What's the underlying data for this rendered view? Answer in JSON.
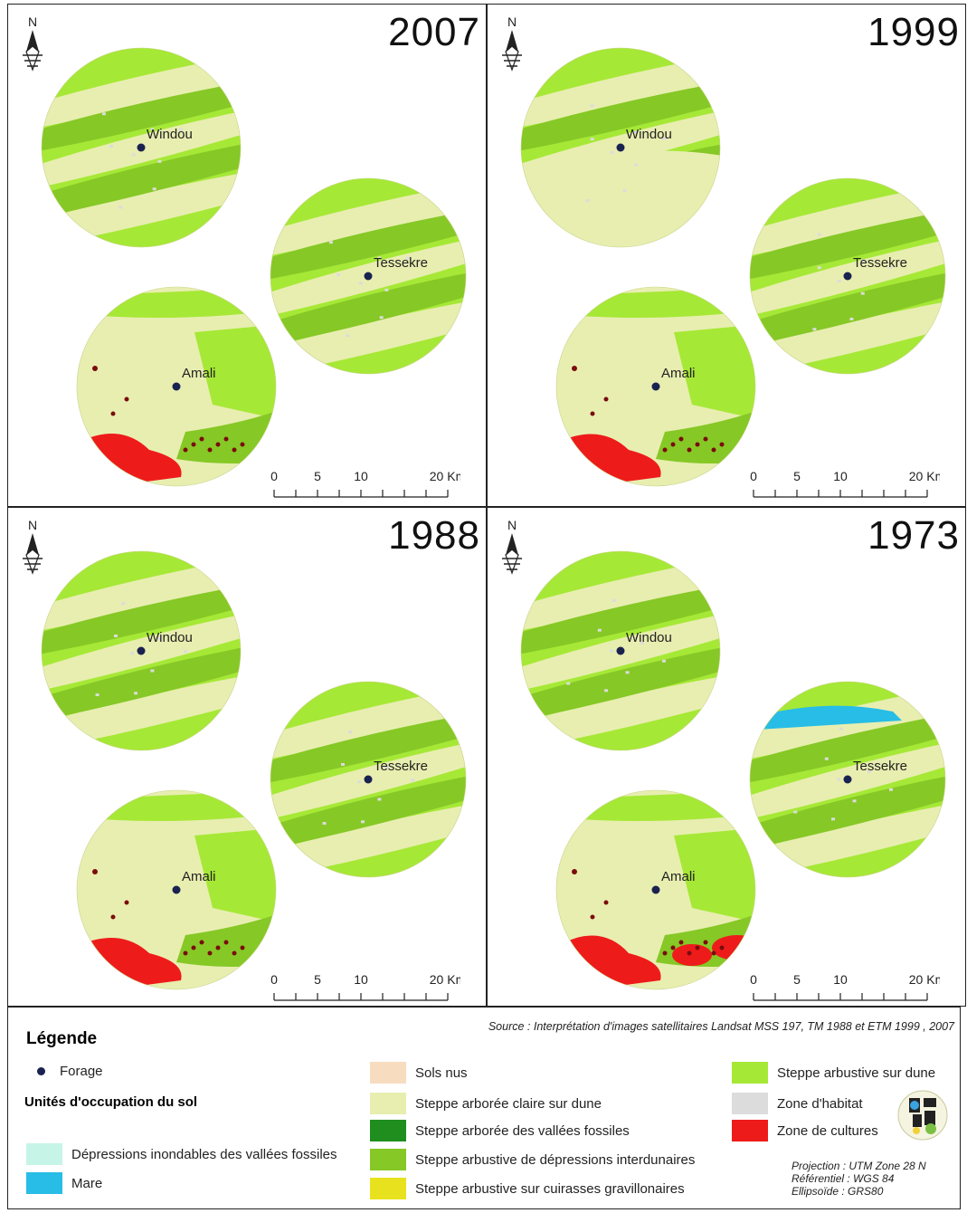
{
  "panels": [
    {
      "year": "2007",
      "villages": {
        "windou": "Windou",
        "tessekre": "Tessekre",
        "amali": "Amali"
      }
    },
    {
      "year": "1999",
      "villages": {
        "windou": "Windou",
        "tessekre": "Tessekre",
        "amali": "Amali"
      }
    },
    {
      "year": "1988",
      "villages": {
        "windou": "Windou",
        "tessekre": "Tessekre",
        "amali": "Amali"
      }
    },
    {
      "year": "1973",
      "villages": {
        "windou": "Windou",
        "tessekre": "Tessekre",
        "amali": "Amali"
      }
    }
  ],
  "north_label": "N",
  "scale": {
    "labels": [
      "0",
      "5",
      "10",
      "20 Km"
    ]
  },
  "legend": {
    "title": "Légende",
    "source": "Source : Interprétation d'images satellitaires Landsat MSS 197, TM 1988 et ETM 1999 , 2007",
    "forage": "Forage",
    "units_title": "Unités d'occupation du sol",
    "items": [
      {
        "label": "Dépressions inondables des vallées fossiles",
        "color": "#c6f5e8"
      },
      {
        "label": "Mare",
        "color": "#27bde6"
      },
      {
        "label": "Sols nus",
        "color": "#f8dcc0"
      },
      {
        "label": "Steppe arborée claire sur dune",
        "color": "#e8eeb0"
      },
      {
        "label": "Steppe arborée des vallées fossiles",
        "color": "#1f8e1f"
      },
      {
        "label": "Steppe arbustive de dépressions interdunaires",
        "color": "#86c826"
      },
      {
        "label": "Steppe arbustive sur cuirasses gravillonaires",
        "color": "#e8e21e"
      },
      {
        "label": "Steppe arbustive sur dune",
        "color": "#a6e836"
      },
      {
        "label": "Zone d'habitat",
        "color": "#dcdcdc"
      },
      {
        "label": "Zone de cultures",
        "color": "#ee1b1b"
      }
    ],
    "projection": [
      "Projection : UTM Zone 28 N",
      "Référentiel : WGS 84",
      "Ellipsoïde : GRS80"
    ]
  },
  "colors": {
    "pale": "#e8eeb0",
    "light_green": "#a6e836",
    "mid_green": "#86c826",
    "red": "#ee1b1b",
    "dark_red": "#7a0d0d",
    "habitat": "#dcdcdc",
    "water": "#27bde6",
    "forage": "#1a2250"
  }
}
